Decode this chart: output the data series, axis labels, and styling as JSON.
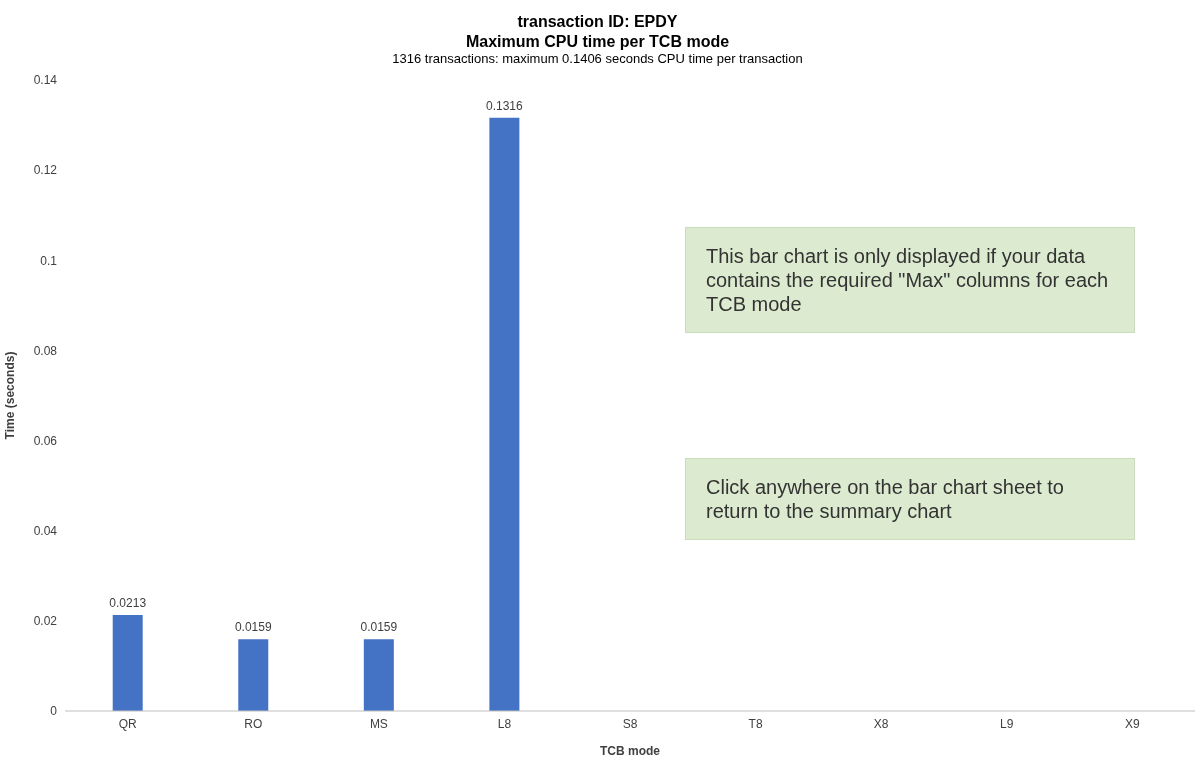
{
  "chart_data": {
    "type": "bar",
    "title": "transaction ID: EPDY",
    "subtitle": "Maximum CPU time per TCB mode",
    "annotations": [
      "1316 transactions: maximum 0.1406 seconds CPU time per transaction",
      "This bar chart is only displayed if your data contains the required \"Max\" columns for each TCB mode",
      "Click anywhere on the bar chart sheet to return to the summary chart"
    ],
    "xlabel": "TCB mode",
    "ylabel": "Time (seconds)",
    "categories": [
      "QR",
      "RO",
      "MS",
      "L8",
      "S8",
      "T8",
      "X8",
      "L9",
      "X9"
    ],
    "values": [
      0.0213,
      0.0159,
      0.0159,
      0.1316,
      0,
      0,
      0,
      0,
      0
    ],
    "value_labels": [
      "0.0213",
      "0.0159",
      "0.0159",
      "0.1316",
      null,
      null,
      null,
      null,
      null
    ],
    "color": "#4472c4",
    "ylim": [
      0,
      0.14
    ],
    "yticks": [
      0,
      0.02,
      0.04,
      0.06,
      0.08,
      0.1,
      0.12,
      0.14
    ],
    "grid": false
  }
}
